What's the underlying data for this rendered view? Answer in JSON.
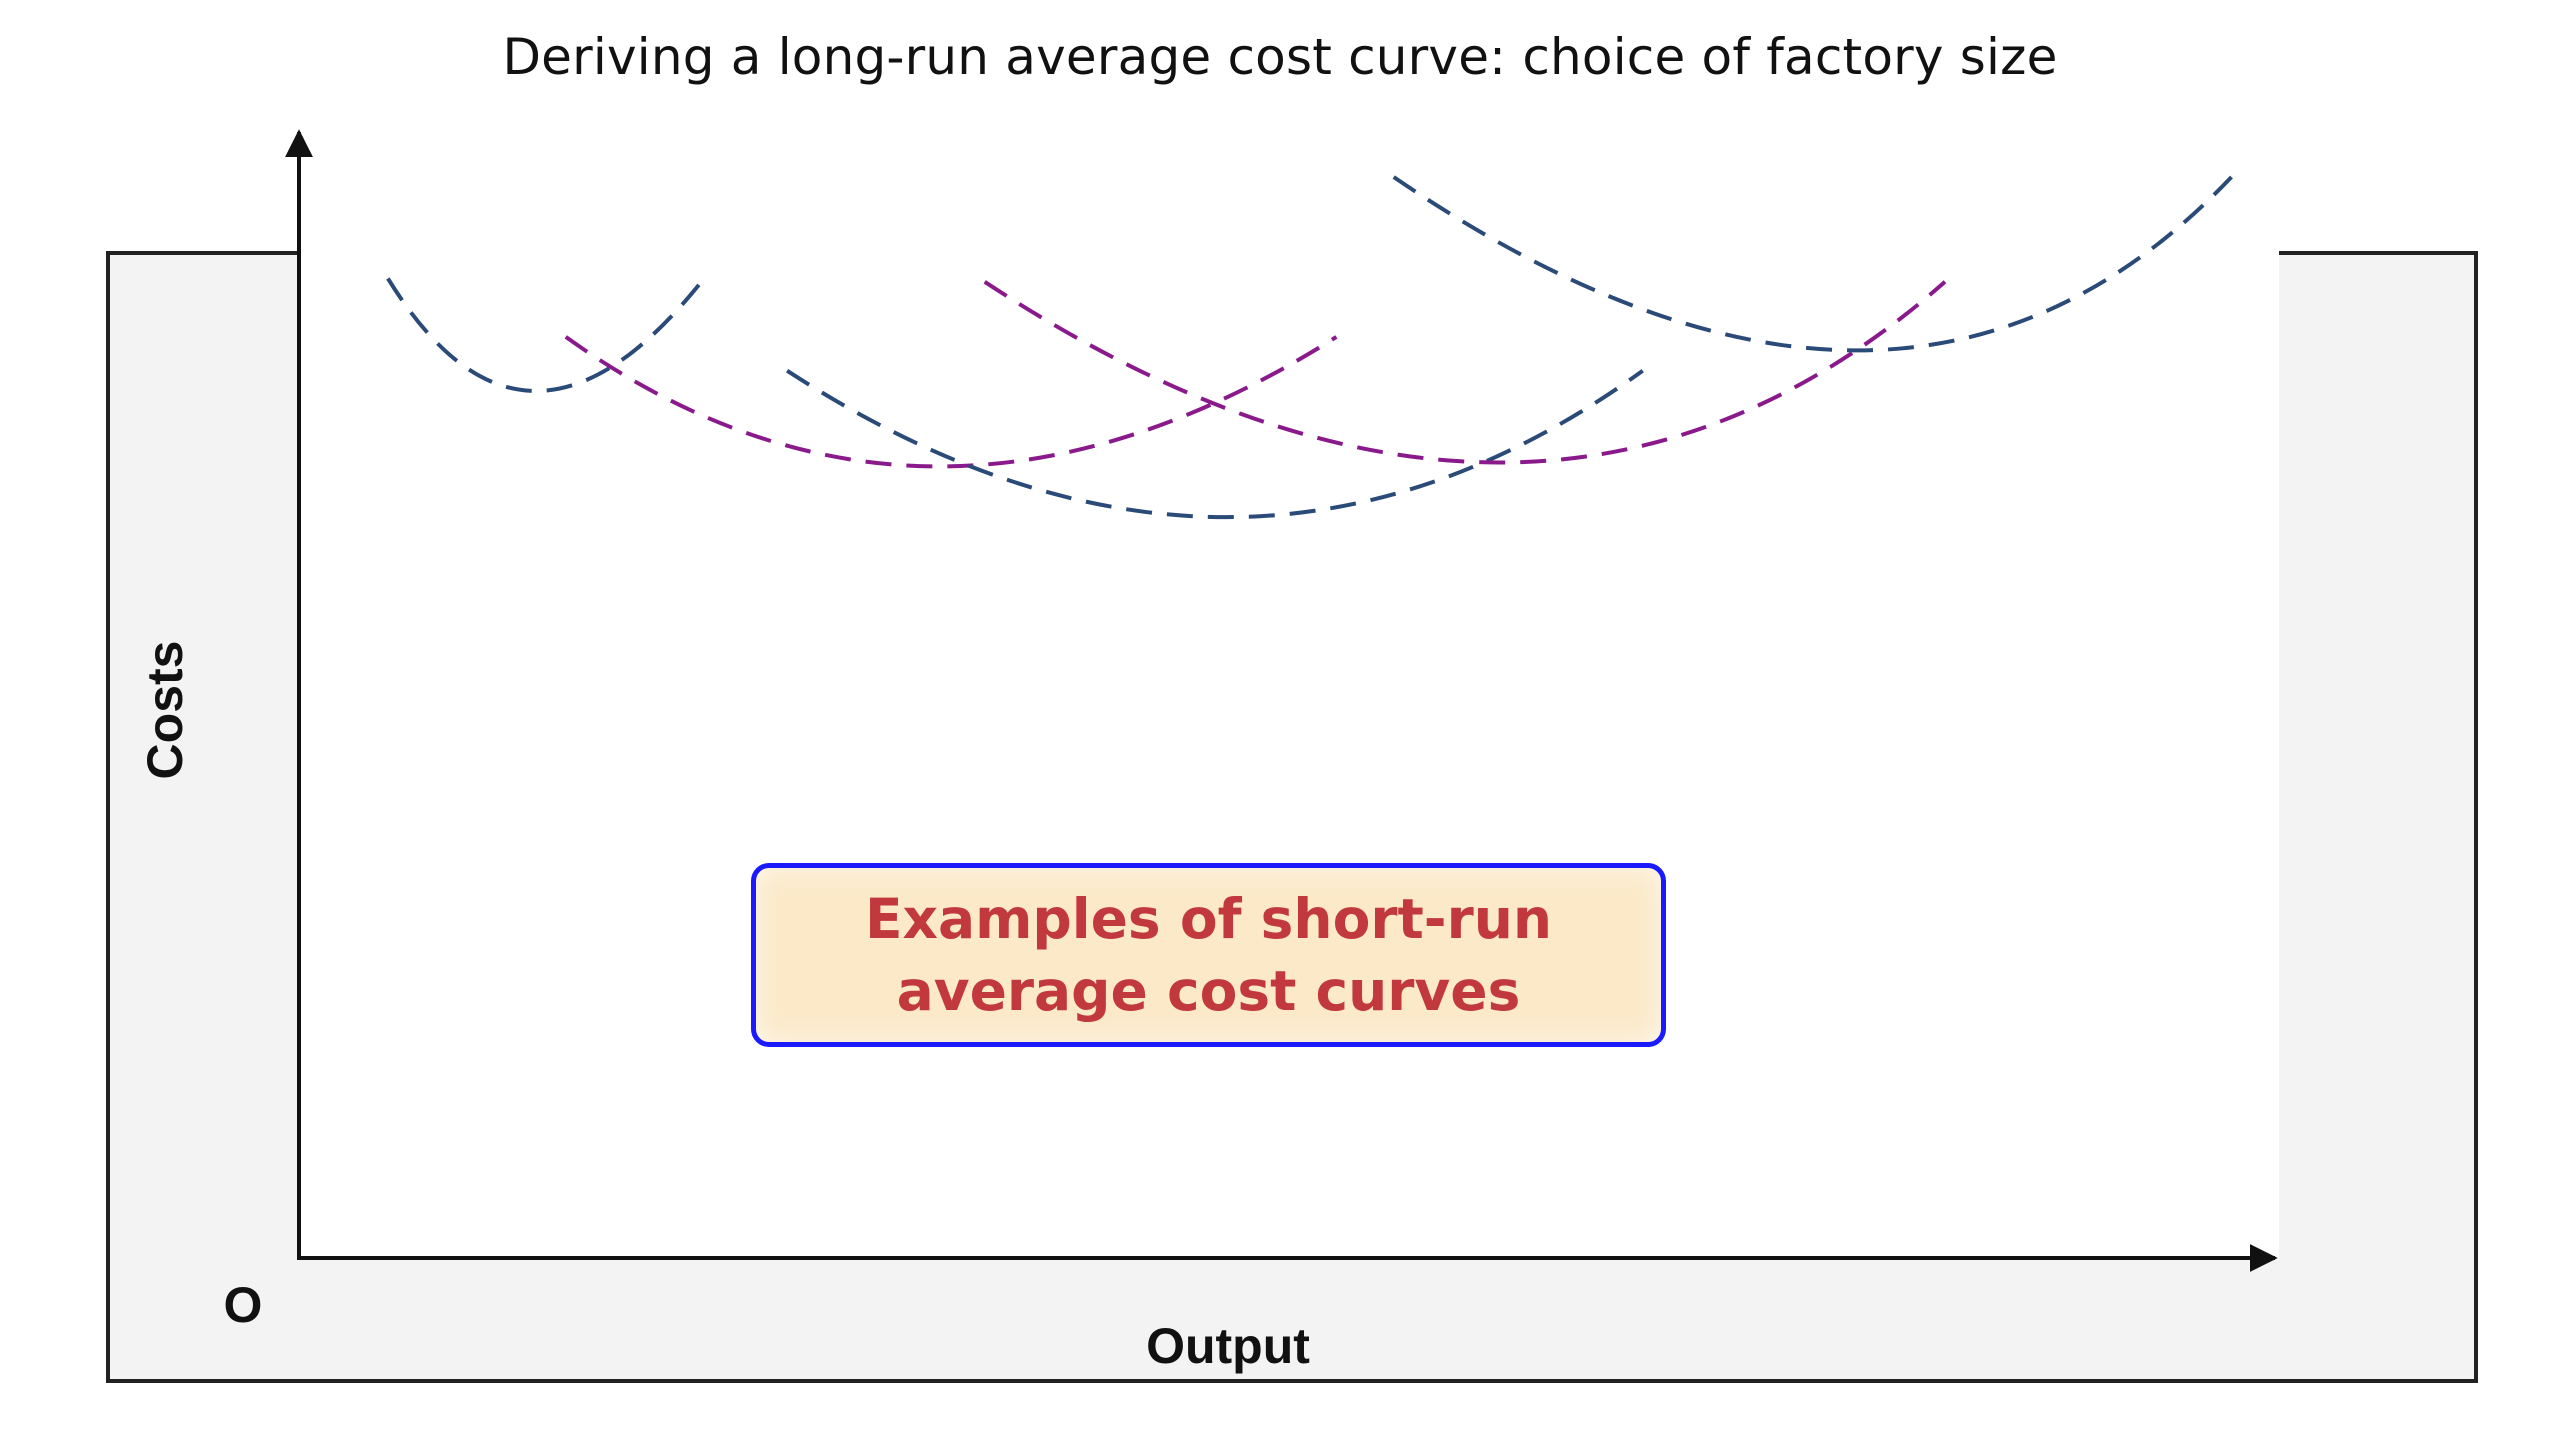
{
  "chart_data": {
    "type": "line",
    "title": "Deriving a long-run average cost curve: choice of factory size",
    "xlabel": "Output",
    "ylabel": "Costs",
    "origin_label": "O",
    "xlim": [
      0,
      1000
    ],
    "ylim": [
      0,
      1000
    ],
    "grid": false,
    "annotation": "Examples of short-run average cost curves",
    "colors": {
      "navy": "#2a4a78",
      "purple": "#8a1a8c"
    },
    "series": [
      {
        "color": "navy",
        "x": [
          45,
          115,
          205,
          410
        ],
        "y": [
          870,
          670,
          870,
          905
        ]
      },
      {
        "color": "purple",
        "x": [
          135,
          318,
          525,
          650
        ],
        "y": [
          818,
          588,
          818,
          862
        ]
      },
      {
        "color": "navy",
        "x": [
          247,
          475,
          680,
          795
        ],
        "y": [
          788,
          528,
          788,
          808
        ]
      },
      {
        "color": "purple",
        "x": [
          347,
          625,
          833,
          962
        ],
        "y": [
          867,
          546,
          867,
          818
        ]
      },
      {
        "color": "navy",
        "x": [
          554,
          811,
          978,
          1032
        ],
        "y": [
          960,
          652,
          960,
          885
        ]
      }
    ]
  }
}
